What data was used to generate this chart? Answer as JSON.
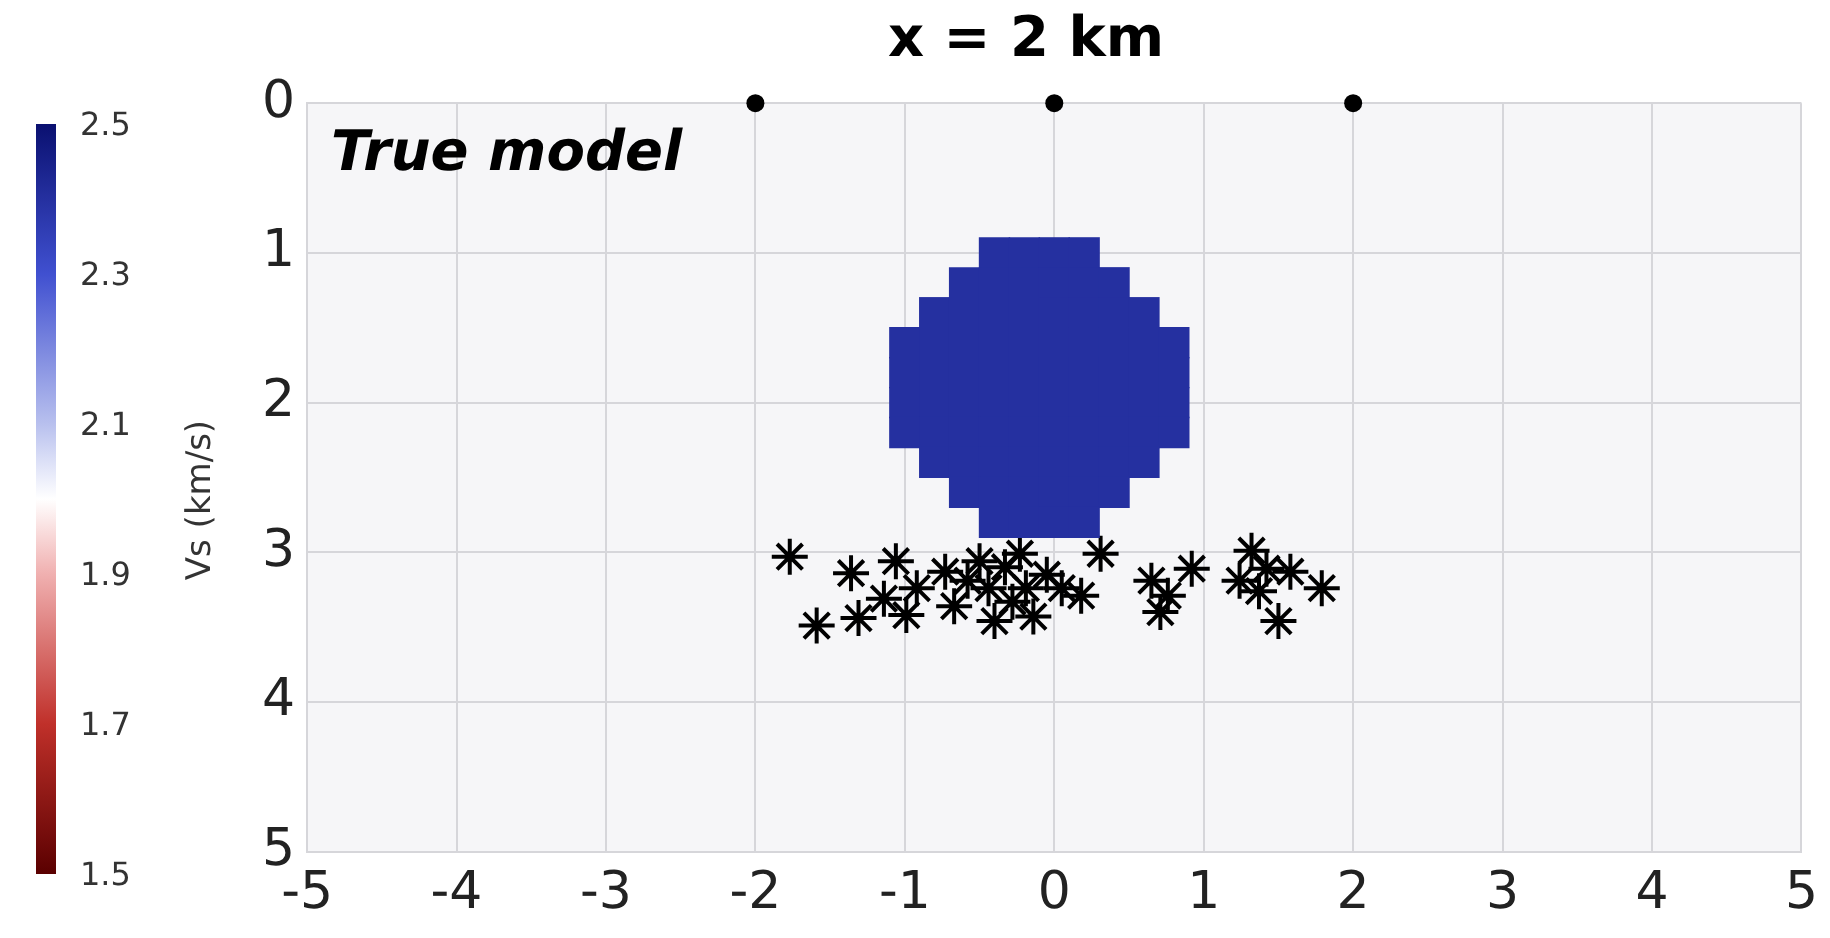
{
  "chart_data": {
    "type": "scatter",
    "title": "x = 2 km",
    "clabel": "Vs (km/s)",
    "clim": [
      1.5,
      2.5
    ],
    "cticks": [
      1.5,
      1.7,
      1.9,
      2.1,
      2.3,
      2.5
    ],
    "annotations": [
      "True model"
    ],
    "xlim": [
      -5,
      5
    ],
    "xticks": [
      -5,
      -4,
      -3,
      -2,
      -1,
      0,
      1,
      2,
      3,
      4,
      5
    ],
    "ylim": [
      5,
      0
    ],
    "yticks": [
      0,
      1,
      2,
      3,
      4,
      5
    ],
    "grid": true,
    "legend": false,
    "series": [
      {
        "marker": "square",
        "x": [
          -0.4,
          -0.2,
          0,
          0.2,
          -0.6,
          -0.4,
          -0.2,
          0,
          0.2,
          0.4,
          -0.8,
          -0.6,
          -0.4,
          -0.2,
          0,
          0.2,
          0.4,
          0.6,
          -1.0,
          -0.8,
          -0.6,
          -0.4,
          -0.2,
          0,
          0.2,
          0.4,
          0.6,
          0.8,
          -1.0,
          -0.8,
          -0.6,
          -0.4,
          -0.2,
          0,
          0.2,
          0.4,
          0.6,
          0.8,
          -1.0,
          -0.8,
          -0.6,
          -0.4,
          -0.2,
          0,
          0.2,
          0.4,
          0.6,
          0.8,
          -1.0,
          -0.8,
          -0.6,
          -0.4,
          -0.2,
          0,
          0.2,
          0.4,
          0.6,
          0.8,
          -0.8,
          -0.6,
          -0.4,
          -0.2,
          0,
          0.2,
          0.4,
          0.6,
          -0.6,
          -0.4,
          -0.2,
          0,
          0.2,
          0.4,
          -0.4,
          -0.2,
          0,
          0.2
        ],
        "values": [
          1.0,
          1.0,
          1.0,
          1.0,
          1.2,
          1.2,
          1.2,
          1.2,
          1.2,
          1.2,
          1.4,
          1.4,
          1.4,
          1.4,
          1.4,
          1.4,
          1.4,
          1.4,
          1.6,
          1.6,
          1.6,
          1.6,
          1.6,
          1.6,
          1.6,
          1.6,
          1.6,
          1.6,
          1.8,
          1.8,
          1.8,
          1.8,
          1.8,
          1.8,
          1.8,
          1.8,
          1.8,
          1.8,
          2.0,
          2.0,
          2.0,
          2.0,
          2.0,
          2.0,
          2.0,
          2.0,
          2.0,
          2.0,
          2.2,
          2.2,
          2.2,
          2.2,
          2.2,
          2.2,
          2.2,
          2.2,
          2.2,
          2.2,
          2.4,
          2.4,
          2.4,
          2.4,
          2.4,
          2.4,
          2.4,
          2.4,
          2.6,
          2.6,
          2.6,
          2.6,
          2.6,
          2.6,
          2.8,
          2.8,
          2.8,
          2.8
        ],
        "cvalues": [
          2.4,
          2.4,
          2.4,
          2.4,
          2.4,
          2.4,
          2.4,
          2.4,
          2.4,
          2.4,
          2.4,
          2.4,
          2.4,
          2.4,
          2.4,
          2.4,
          2.4,
          2.4,
          2.4,
          2.4,
          2.4,
          2.4,
          2.4,
          2.4,
          2.4,
          2.4,
          2.4,
          2.4,
          2.4,
          2.4,
          2.4,
          2.4,
          2.4,
          2.4,
          2.4,
          2.4,
          2.4,
          2.4,
          2.4,
          2.4,
          2.4,
          2.4,
          2.4,
          2.4,
          2.4,
          2.4,
          2.4,
          2.4,
          2.4,
          2.4,
          2.4,
          2.4,
          2.4,
          2.4,
          2.4,
          2.4,
          2.4,
          2.4,
          2.4,
          2.4,
          2.4,
          2.4,
          2.4,
          2.4,
          2.4,
          2.4,
          2.4,
          2.4,
          2.4,
          2.4,
          2.4,
          2.4,
          2.4,
          2.4,
          2.4,
          2.4
        ]
      },
      {
        "marker": "cross",
        "color": "#000000",
        "x": [
          -1.77,
          -1.59,
          -1.36,
          -1.31,
          -1.14,
          -1.06,
          -0.99,
          -0.92,
          -0.73,
          -0.67,
          -0.58,
          -0.5,
          -0.44,
          -0.4,
          -0.33,
          -0.28,
          -0.23,
          -0.19,
          -0.14,
          -0.05,
          0.05,
          0.18,
          0.31,
          0.65,
          0.71,
          0.76,
          0.92,
          1.24,
          1.32,
          1.37,
          1.42,
          1.5,
          1.58,
          1.79
        ],
        "values": [
          3.03,
          3.49,
          3.14,
          3.44,
          3.31,
          3.06,
          3.42,
          3.24,
          3.13,
          3.36,
          3.19,
          3.06,
          3.24,
          3.46,
          3.1,
          3.33,
          3.01,
          3.24,
          3.43,
          3.15,
          3.24,
          3.29,
          3.01,
          3.19,
          3.4,
          3.29,
          3.11,
          3.19,
          2.99,
          3.26,
          3.11,
          3.46,
          3.13,
          3.24
        ]
      },
      {
        "marker": "circle",
        "color": "#000000",
        "x": [
          -2,
          0,
          2
        ],
        "values": [
          0,
          0,
          0
        ]
      }
    ]
  }
}
